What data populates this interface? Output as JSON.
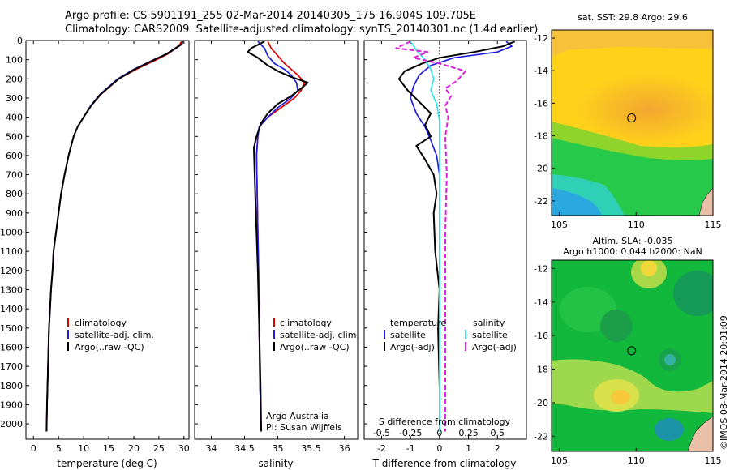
{
  "header": {
    "title_line1": "Argo profile: CS 5901191_255 02-Mar-2014 20140305_175 16.904S 109.705E",
    "title_line2": "Climatology: CARS2009. Satellite-adjusted climatology: synTS_20140301.nc (1.4d earlier)"
  },
  "colors": {
    "climatology": "#e00000",
    "satellite": "#1f1fe0",
    "argo": "#000000",
    "sal_satellite": "#33e6e6",
    "sal_argo": "#e020e0"
  },
  "chart_data": [
    {
      "id": "temperature",
      "type": "line",
      "xlabel": "temperature (deg C)",
      "ylabel": "",
      "xlim": [
        -1.5,
        31
      ],
      "ylim": [
        0,
        2080
      ],
      "xticks": [
        0,
        5,
        10,
        15,
        20,
        25,
        30
      ],
      "yticks": [
        0,
        100,
        200,
        300,
        400,
        500,
        600,
        700,
        800,
        900,
        1000,
        1100,
        1200,
        1300,
        1400,
        1500,
        1600,
        1700,
        1800,
        1900,
        2000
      ],
      "legend": [
        "climatology",
        "satellite-adj. clim.",
        "Argo(..raw -QC)"
      ],
      "series": [
        {
          "name": "climatology",
          "color": "#e00000",
          "x": [
            29.5,
            29.2,
            28.4,
            26.8,
            24.5,
            20.5,
            17.0,
            13.5,
            11.5,
            10.0,
            8.8,
            8.0,
            7.0,
            6.2,
            5.5,
            5.0,
            4.5,
            4.0,
            3.8,
            3.5,
            3.3,
            3.1,
            3.0,
            2.9,
            2.8,
            2.7,
            2.6
          ],
          "y": [
            5,
            20,
            40,
            70,
            100,
            150,
            200,
            280,
            340,
            400,
            450,
            500,
            600,
            700,
            800,
            900,
            1000,
            1100,
            1200,
            1300,
            1400,
            1500,
            1600,
            1700,
            1800,
            1900,
            2040
          ]
        },
        {
          "name": "satellite-adj. clim.",
          "color": "#1f1fe0",
          "x": [
            29.8,
            29.6,
            28.4,
            26.6,
            24.0,
            20.0,
            16.8,
            13.3,
            11.4,
            10.0,
            8.8,
            8.0,
            7.0,
            6.2,
            5.5,
            5.0,
            4.5,
            4.0,
            3.8,
            3.5,
            3.3,
            3.1,
            3.0,
            2.9,
            2.8,
            2.7,
            2.6
          ],
          "y": [
            5,
            20,
            40,
            70,
            100,
            150,
            200,
            280,
            340,
            400,
            450,
            500,
            600,
            700,
            800,
            900,
            1000,
            1100,
            1200,
            1300,
            1400,
            1500,
            1600,
            1700,
            1800,
            1900,
            2040
          ]
        },
        {
          "name": "Argo(..raw -QC)",
          "color": "#000000",
          "x": [
            29.7,
            29.5,
            28.3,
            26.5,
            24.1,
            20.2,
            17.0,
            13.4,
            11.5,
            10.0,
            8.8,
            8.0,
            7.0,
            6.2,
            5.5,
            5.0,
            4.5,
            4.0,
            3.8,
            3.5,
            3.3,
            3.1,
            3.0,
            2.9,
            2.8,
            2.7,
            2.6
          ],
          "y": [
            5,
            20,
            40,
            70,
            100,
            150,
            200,
            280,
            340,
            400,
            450,
            500,
            600,
            700,
            800,
            900,
            1000,
            1100,
            1200,
            1300,
            1400,
            1500,
            1600,
            1700,
            1800,
            1900,
            2040
          ]
        }
      ]
    },
    {
      "id": "salinity",
      "type": "line",
      "xlabel": "salinity",
      "xlim": [
        33.75,
        36.2
      ],
      "ylim": [
        0,
        2080
      ],
      "xticks": [
        34,
        34.5,
        35,
        35.5,
        36
      ],
      "legend": [
        "climatology",
        "satellite-adj. clim.",
        "Argo(..raw -QC)"
      ],
      "annotation": [
        "Argo Australia",
        "PI: Susan Wijffels"
      ],
      "series": [
        {
          "name": "climatology",
          "color": "#e00000",
          "x": [
            34.85,
            34.9,
            35.0,
            35.1,
            35.2,
            35.3,
            35.4,
            35.35,
            35.25,
            35.05,
            34.85,
            34.72,
            34.7,
            34.68,
            34.69,
            34.7,
            34.71,
            34.72,
            34.73,
            34.74,
            34.75
          ],
          "y": [
            5,
            40,
            80,
            120,
            150,
            180,
            220,
            260,
            300,
            350,
            400,
            450,
            500,
            600,
            800,
            1000,
            1200,
            1500,
            1800,
            1900,
            2040
          ]
        },
        {
          "name": "satellite-adj. clim.",
          "color": "#1f1fe0",
          "x": [
            34.7,
            34.8,
            34.85,
            34.95,
            35.1,
            35.2,
            35.28,
            35.3,
            35.2,
            35.0,
            34.85,
            34.72,
            34.7,
            34.68,
            34.69,
            34.7,
            34.71,
            34.72,
            34.73,
            34.74,
            34.75
          ],
          "y": [
            5,
            40,
            80,
            120,
            150,
            180,
            220,
            260,
            300,
            350,
            400,
            450,
            500,
            600,
            800,
            1000,
            1200,
            1500,
            1800,
            1900,
            2040
          ]
        },
        {
          "name": "Argo(..raw -QC)",
          "color": "#000000",
          "x": [
            34.8,
            34.6,
            34.55,
            34.7,
            34.85,
            35.0,
            35.2,
            35.45,
            35.35,
            35.2,
            35.0,
            34.85,
            34.75,
            34.68,
            34.64,
            34.66,
            34.68,
            34.7,
            34.72,
            34.74,
            34.75
          ],
          "y": [
            5,
            40,
            60,
            90,
            130,
            160,
            190,
            220,
            250,
            290,
            330,
            380,
            430,
            500,
            560,
            800,
            1000,
            1200,
            1500,
            1800,
            2040
          ]
        }
      ]
    },
    {
      "id": "difference",
      "type": "line",
      "xlabel": "T difference from climatology",
      "toplabel": "S difference from climatology",
      "xlim": [
        -2.6,
        3.0
      ],
      "ylim": [
        0,
        2080
      ],
      "xticks": [
        -2,
        -1,
        0,
        1,
        2
      ],
      "top_tick_labels": [
        "-0.5",
        "-0.25",
        "0",
        "0.25",
        "0.5"
      ],
      "legend_temperature": [
        "temperature",
        "satellite",
        "Argo(-adj)"
      ],
      "legend_salinity": [
        "salinity",
        "satellite",
        "Argo(-adj)"
      ],
      "series": [
        {
          "name": "temperature satellite",
          "color": "#1f1fe0",
          "x": [
            2.3,
            2.5,
            2.0,
            0.5,
            -0.3,
            -0.7,
            -0.9,
            -1.0,
            -0.8,
            -0.5,
            -0.3,
            -0.1,
            0.0,
            0.0
          ],
          "y": [
            5,
            30,
            60,
            90,
            130,
            180,
            240,
            300,
            380,
            450,
            520,
            600,
            700,
            2040
          ]
        },
        {
          "name": "temperature Argo(-adj)",
          "color": "#000000",
          "x": [
            2.6,
            2.2,
            1.2,
            0.0,
            -0.6,
            -1.2,
            -1.4,
            -1.1,
            -0.7,
            -0.3,
            -0.5,
            -0.3,
            -0.8,
            -0.5,
            -0.2,
            -0.1,
            -0.2,
            -0.15,
            0.0,
            -0.05,
            0.0
          ],
          "y": [
            5,
            30,
            60,
            90,
            120,
            160,
            200,
            260,
            320,
            380,
            440,
            500,
            550,
            620,
            700,
            800,
            900,
            1100,
            1300,
            1500,
            1800
          ]
        },
        {
          "name": "salinity satellite",
          "color": "#33e6e6",
          "x": [
            -1.0,
            -0.8,
            -0.5,
            -0.3,
            -0.2,
            -0.3,
            -0.1,
            0.0,
            0.0,
            0.0
          ],
          "y": [
            5,
            50,
            100,
            150,
            200,
            260,
            330,
            420,
            600,
            2040
          ]
        },
        {
          "name": "salinity Argo(-adj)",
          "color": "#e020e0",
          "x": [
            -1.0,
            -1.5,
            -0.4,
            -0.9,
            0.0,
            0.9,
            0.6,
            0.2,
            0.4,
            0.2,
            0.3,
            0.2,
            0.25,
            0.2,
            0.2
          ],
          "y": [
            5,
            40,
            60,
            90,
            120,
            160,
            210,
            250,
            290,
            340,
            400,
            500,
            700,
            1000,
            2040
          ]
        }
      ]
    },
    {
      "id": "sst-map",
      "type": "heatmap",
      "title": "sat. SST: 29.8 Argo: 29.6",
      "xlim": [
        104.5,
        115
      ],
      "ylim": [
        -22.9,
        -11.5
      ],
      "xticks": [
        105,
        110,
        115
      ],
      "yticks": [
        -12,
        -14,
        -16,
        -18,
        -20,
        -22
      ],
      "marker": [
        109.705,
        -16.904
      ]
    },
    {
      "id": "sla-map",
      "type": "heatmap",
      "title_line1": "Altim. SLA: -0.035",
      "title_line2": "Argo h1000: 0.044 h2000: NaN",
      "xlim": [
        104.5,
        115
      ],
      "ylim": [
        -22.9,
        -11.5
      ],
      "xticks": [
        105,
        110,
        115
      ],
      "yticks": [
        -12,
        -14,
        -16,
        -18,
        -20,
        -22
      ],
      "marker": [
        109.705,
        -16.904
      ]
    }
  ],
  "footer": {
    "credit": "©IMOS 08-Mar-2014 20:01:09"
  }
}
